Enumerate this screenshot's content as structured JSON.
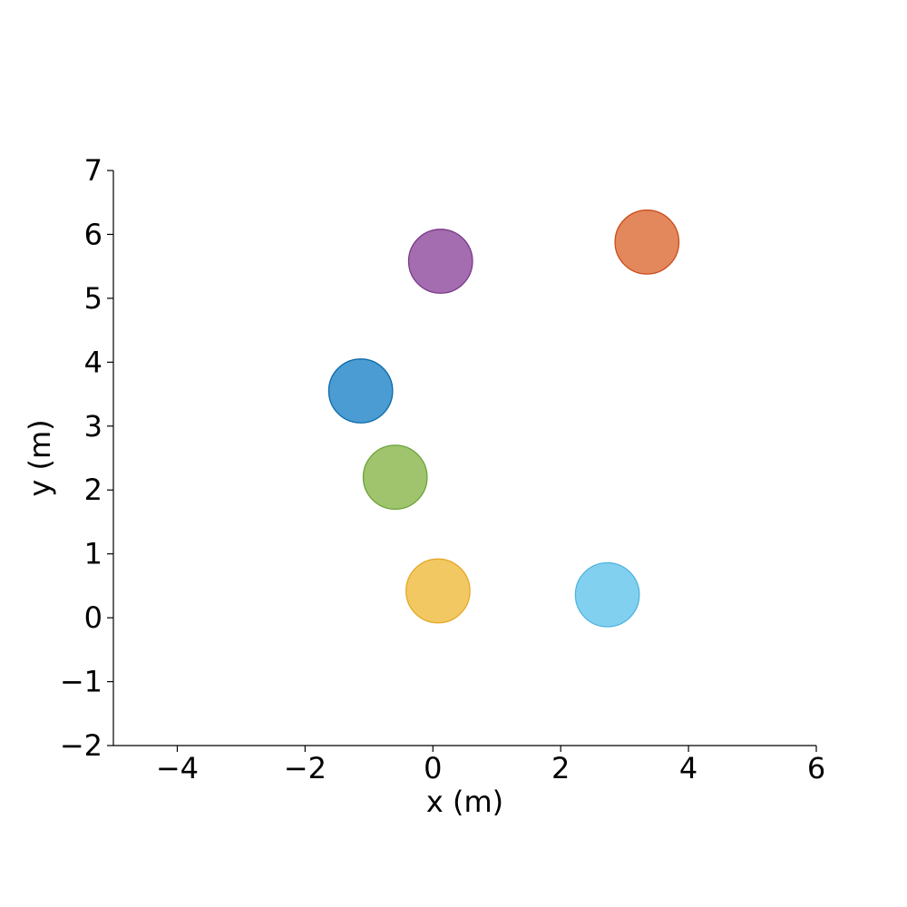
{
  "chart_data": {
    "type": "scatter",
    "title": "",
    "xlabel": "x (m)",
    "ylabel": "y (m)",
    "xlim": [
      -5,
      6
    ],
    "ylim": [
      -2,
      7
    ],
    "xticks": [
      -4,
      -2,
      0,
      2,
      4,
      6
    ],
    "yticks": [
      -2,
      -1,
      0,
      1,
      2,
      3,
      4,
      5,
      6,
      7
    ],
    "xtick_labels": [
      "−4",
      "−2",
      "0",
      "2",
      "4",
      "6"
    ],
    "ytick_labels": [
      "−2",
      "−1",
      "0",
      "1",
      "2",
      "3",
      "4",
      "5",
      "6",
      "7"
    ],
    "grid": false,
    "legend": "none",
    "marker_radius": 0.5,
    "points": [
      {
        "x": -1.13,
        "y": 3.55,
        "fill": "#4b9cd3",
        "edge": "#0d6aa8"
      },
      {
        "x": 3.35,
        "y": 5.88,
        "fill": "#e3875c",
        "edge": "#cc4c1a"
      },
      {
        "x": 0.12,
        "y": 5.58,
        "fill": "#a46db0",
        "edge": "#7a3a88"
      },
      {
        "x": -0.59,
        "y": 2.2,
        "fill": "#a0c46d",
        "edge": "#6aa33a"
      },
      {
        "x": 0.08,
        "y": 0.42,
        "fill": "#f2c862",
        "edge": "#e5a828"
      },
      {
        "x": 2.73,
        "y": 0.36,
        "fill": "#82d0f0",
        "edge": "#4fb3e0"
      }
    ]
  }
}
